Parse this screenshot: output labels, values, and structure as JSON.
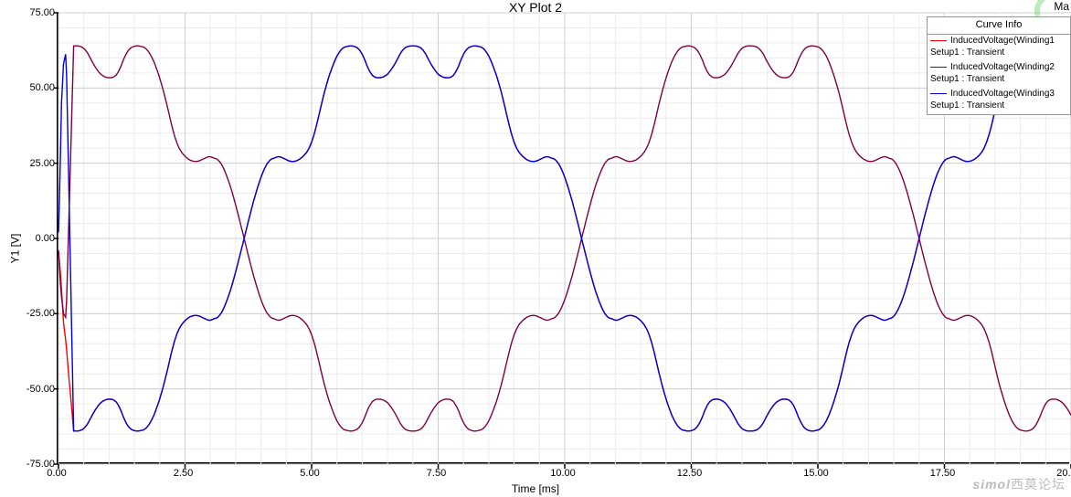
{
  "title": "XY Plot 2",
  "ylabel": "Y1 [V]",
  "xlabel": "Time [ms]",
  "top_right_text": "Ma",
  "watermark": {
    "en": "simol",
    "cn": "西莫论坛"
  },
  "axes": {
    "xlim": [
      0,
      20
    ],
    "ylim": [
      -75,
      75
    ],
    "xtick_step": 2.5,
    "ytick_step": 25,
    "xticks": [
      0.0,
      2.5,
      5.0,
      7.5,
      10.0,
      12.5,
      15.0,
      17.5,
      20.0
    ],
    "yticks": [
      -75.0,
      -50.0,
      -25.0,
      0.0,
      25.0,
      50.0,
      75.0
    ],
    "grid_minor_x_step": 0.5,
    "grid_minor_y_step": 5,
    "grid_major_color": "#d0d0d0",
    "grid_minor_color": "#ececec",
    "axis_color": "#000000",
    "background_color": "#ffffff",
    "tick_fontsize": 11,
    "label_fontsize": 12,
    "title_fontsize": 14,
    "line_width": 1.4
  },
  "legend": {
    "header": "Curve Info",
    "position": "top-right",
    "border_color": "#999999",
    "items": [
      {
        "color": "#ff0000",
        "label": "InducedVoltage(Winding1",
        "sub": "Setup1 : Transient"
      },
      {
        "color": "#800040",
        "label": "InducedVoltage(Winding2",
        "sub": "Setup1 : Transient"
      },
      {
        "color": "#0000e0",
        "label": "InducedVoltage(Winding3",
        "sub": "Setup1 : Transient"
      }
    ]
  },
  "lookup_amp": [
    [
      0.0,
      64.0
    ],
    [
      0.05,
      64.0
    ],
    [
      0.1,
      63.8
    ],
    [
      0.15,
      63.4
    ],
    [
      0.2,
      62.6
    ],
    [
      0.25,
      61.4
    ],
    [
      0.3,
      59.8
    ],
    [
      0.35,
      58.2
    ],
    [
      0.4,
      56.8
    ],
    [
      0.45,
      55.6
    ],
    [
      0.5,
      54.6
    ],
    [
      0.55,
      54.0
    ],
    [
      0.6,
      53.6
    ],
    [
      0.65,
      53.4
    ],
    [
      0.7,
      53.4
    ],
    [
      0.75,
      53.6
    ],
    [
      0.8,
      54.2
    ],
    [
      0.85,
      55.4
    ],
    [
      0.9,
      57.2
    ],
    [
      0.95,
      59.4
    ],
    [
      1.0,
      61.2
    ],
    [
      1.05,
      62.6
    ],
    [
      1.1,
      63.4
    ],
    [
      1.15,
      63.8
    ],
    [
      1.2,
      64.0
    ],
    [
      1.25,
      64.0
    ],
    [
      1.3,
      63.8
    ],
    [
      1.35,
      63.6
    ],
    [
      1.4,
      63.0
    ],
    [
      1.45,
      62.0
    ],
    [
      1.5,
      60.6
    ],
    [
      1.55,
      58.8
    ],
    [
      1.6,
      56.6
    ],
    [
      1.65,
      54.2
    ],
    [
      1.7,
      51.4
    ],
    [
      1.75,
      48.4
    ],
    [
      1.8,
      45.0
    ],
    [
      1.85,
      41.4
    ],
    [
      1.9,
      37.8
    ],
    [
      1.95,
      34.6
    ],
    [
      2.0,
      32.0
    ],
    [
      2.05,
      30.0
    ],
    [
      2.1,
      28.6
    ],
    [
      2.15,
      27.6
    ],
    [
      2.2,
      26.8
    ],
    [
      2.25,
      26.2
    ],
    [
      2.3,
      25.8
    ],
    [
      2.35,
      25.6
    ],
    [
      2.4,
      25.6
    ],
    [
      2.45,
      25.8
    ],
    [
      2.5,
      26.2
    ],
    [
      2.55,
      26.6
    ],
    [
      2.6,
      27.0
    ],
    [
      2.65,
      27.2
    ],
    [
      2.7,
      27.0
    ],
    [
      2.75,
      26.6
    ]
  ],
  "series": [
    {
      "name": "Winding1",
      "color": "#ff0000",
      "phase_offset_ms": 6.3333333,
      "startup": [
        [
          0.0,
          -4.0
        ],
        [
          0.05,
          -14.0
        ],
        [
          0.1,
          -28.0
        ],
        [
          0.15,
          -35.0
        ],
        [
          0.2,
          -36.0
        ],
        [
          0.25,
          -35.5
        ],
        [
          0.3,
          -35.0
        ]
      ]
    },
    {
      "name": "Winding2",
      "color": "#800040",
      "phase_offset_ms": -0.3333333,
      "startup": [
        [
          0.0,
          -4.0
        ],
        [
          0.05,
          -18.0
        ],
        [
          0.1,
          -25.0
        ],
        [
          0.15,
          -26.5
        ],
        [
          0.2,
          -27.0
        ],
        [
          0.25,
          -27.0
        ],
        [
          0.3,
          -27.0
        ]
      ]
    },
    {
      "name": "Winding3",
      "color": "#0000e0",
      "phase_offset_ms": -7.0,
      "startup": [
        [
          0.0,
          2.0
        ],
        [
          0.03,
          20.0
        ],
        [
          0.06,
          45.0
        ],
        [
          0.1,
          58.0
        ],
        [
          0.15,
          62.0
        ],
        [
          0.2,
          63.0
        ],
        [
          0.25,
          63.5
        ],
        [
          0.3,
          64.0
        ]
      ]
    }
  ]
}
